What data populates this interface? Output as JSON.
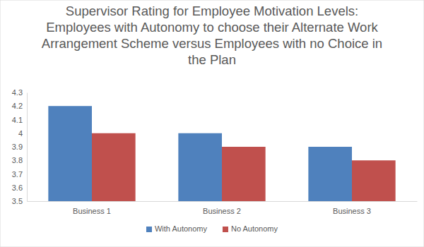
{
  "chart_data": {
    "type": "bar",
    "title": "Supervisor Rating for Employee Motivation Levels:\nEmployees with Autonomy to choose their Alternate Work\nArrangement Scheme versus Employees with no Choice in\nthe Plan",
    "categories": [
      "Business 1",
      "Business 2",
      "Business 3"
    ],
    "series": [
      {
        "name": "With Autonomy",
        "color": "#4f81bd",
        "values": [
          4.2,
          4.0,
          3.9
        ]
      },
      {
        "name": "No Autonomy",
        "color": "#c0504d",
        "values": [
          4.0,
          3.9,
          3.8
        ]
      }
    ],
    "ylim": [
      3.5,
      4.3
    ],
    "yticks": [
      3.5,
      3.6,
      3.7,
      3.8,
      3.9,
      4,
      4.1,
      4.2,
      4.3
    ],
    "grid": false,
    "legend": "bottom"
  }
}
